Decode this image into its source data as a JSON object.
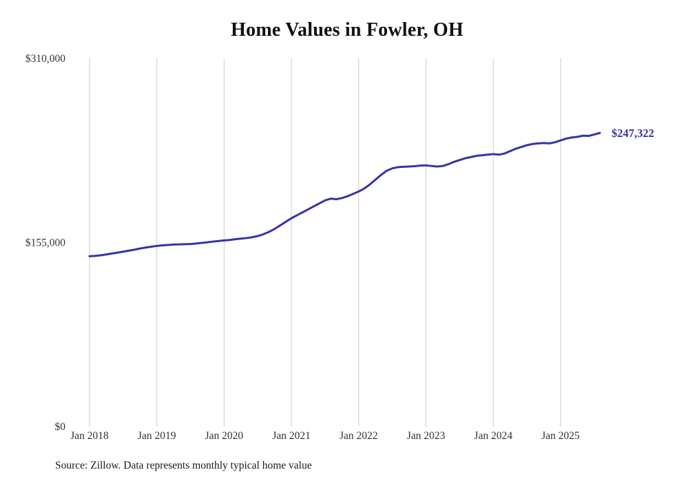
{
  "title": "Home Values in Fowler, OH",
  "source": "Source: Zillow. Data represents monthly typical home value",
  "colors": {
    "line": "#3533a8",
    "gridline": "#cccccc",
    "tick_text": "#333333",
    "title_text": "#111111"
  },
  "chart_data": {
    "type": "line",
    "title": "Home Values in Fowler, OH",
    "xlabel": "",
    "ylabel": "",
    "unit": "USD",
    "ylim": [
      0,
      310000
    ],
    "grid": "vertical-only",
    "legend": "none",
    "end_label": "$247,322",
    "line_color": "#3533a8",
    "y_ticks": [
      {
        "label": "$310,000",
        "value": 310000
      },
      {
        "label": "$155,000",
        "value": 155000
      },
      {
        "label": "$0",
        "value": 0
      }
    ],
    "x_ticks": [
      "Jan 2018",
      "Jan 2019",
      "Jan 2020",
      "Jan 2021",
      "Jan 2022",
      "Jan 2023",
      "Jan 2024",
      "Jan 2025"
    ],
    "months": [
      "2018-01",
      "2018-02",
      "2018-03",
      "2018-04",
      "2018-05",
      "2018-06",
      "2018-07",
      "2018-08",
      "2018-09",
      "2018-10",
      "2018-11",
      "2018-12",
      "2019-01",
      "2019-02",
      "2019-03",
      "2019-04",
      "2019-05",
      "2019-06",
      "2019-07",
      "2019-08",
      "2019-09",
      "2019-10",
      "2019-11",
      "2019-12",
      "2020-01",
      "2020-02",
      "2020-03",
      "2020-04",
      "2020-05",
      "2020-06",
      "2020-07",
      "2020-08",
      "2020-09",
      "2020-10",
      "2020-11",
      "2020-12",
      "2021-01",
      "2021-02",
      "2021-03",
      "2021-04",
      "2021-05",
      "2021-06",
      "2021-07",
      "2021-08",
      "2021-09",
      "2021-10",
      "2021-11",
      "2021-12",
      "2022-01",
      "2022-02",
      "2022-03",
      "2022-04",
      "2022-05",
      "2022-06",
      "2022-07",
      "2022-08",
      "2022-09",
      "2022-10",
      "2022-11",
      "2022-12",
      "2023-01",
      "2023-02",
      "2023-03",
      "2023-04",
      "2023-05",
      "2023-06",
      "2023-07",
      "2023-08",
      "2023-09",
      "2023-10",
      "2023-11",
      "2023-12",
      "2024-01",
      "2024-02",
      "2024-03",
      "2024-04",
      "2024-05",
      "2024-06",
      "2024-07",
      "2024-08",
      "2024-09",
      "2024-10",
      "2024-11",
      "2024-12",
      "2025-01",
      "2025-02",
      "2025-03",
      "2025-04",
      "2025-05",
      "2025-06",
      "2025-07",
      "2025-08"
    ],
    "values": [
      143500,
      143800,
      144300,
      145000,
      145800,
      146500,
      147300,
      148200,
      149000,
      150000,
      150800,
      151500,
      152200,
      152700,
      153000,
      153300,
      153500,
      153600,
      153800,
      154200,
      154700,
      155200,
      155800,
      156300,
      156800,
      157200,
      157800,
      158300,
      158800,
      159500,
      160500,
      162000,
      164000,
      166500,
      169500,
      172500,
      175500,
      178000,
      180500,
      183000,
      185500,
      188000,
      190500,
      192000,
      191500,
      192500,
      194000,
      196000,
      198000,
      200500,
      204000,
      208000,
      212000,
      215500,
      217500,
      218500,
      218800,
      219000,
      219300,
      219800,
      220000,
      219500,
      219000,
      219500,
      221000,
      223000,
      224500,
      226000,
      227000,
      228000,
      228500,
      229000,
      229500,
      229000,
      230000,
      232000,
      234000,
      235500,
      237000,
      238000,
      238500,
      238800,
      238500,
      239500,
      241000,
      242500,
      243500,
      244000,
      245000,
      244800,
      246000,
      247322
    ]
  }
}
